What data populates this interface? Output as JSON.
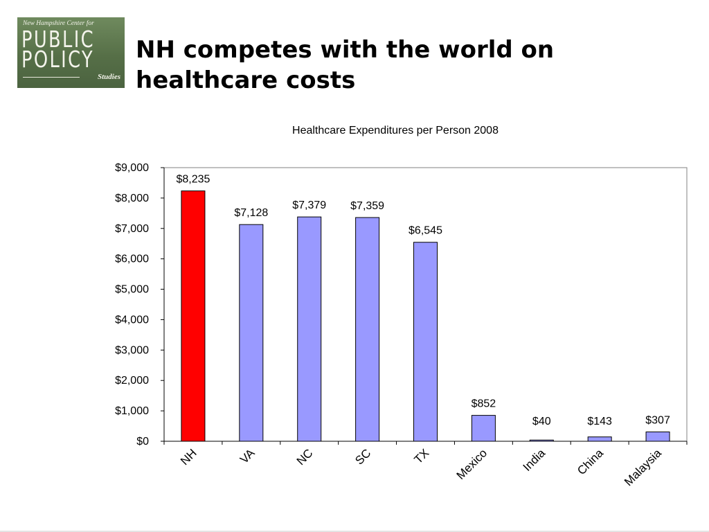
{
  "slide": {
    "title": "NH competes with the world on healthcare costs"
  },
  "logo": {
    "line1": "New Hampshire Center for",
    "line2": "PUBLIC",
    "line3": "POLICY",
    "line4": "Studies"
  },
  "chart_data": {
    "type": "bar",
    "title": "Healthcare Expenditures per Person 2008",
    "xlabel": "",
    "ylabel": "",
    "categories": [
      "NH",
      "VA",
      "NC",
      "SC",
      "TX",
      "Mexico",
      "India",
      "China",
      "Malaysia"
    ],
    "values": [
      8235,
      7128,
      7379,
      7359,
      6545,
      852,
      40,
      143,
      307
    ],
    "data_labels": [
      "$8,235",
      "$7,128",
      "$7,379",
      "$7,359",
      "$6,545",
      "$852",
      "$40",
      "$143",
      "$307"
    ],
    "ylim": [
      0,
      9000
    ],
    "yticks": [
      0,
      1000,
      2000,
      3000,
      4000,
      5000,
      6000,
      7000,
      8000,
      9000
    ],
    "ytick_labels": [
      "$0",
      "$1,000",
      "$2,000",
      "$3,000",
      "$4,000",
      "$5,000",
      "$6,000",
      "$7,000",
      "$8,000",
      "$9,000"
    ],
    "bar_colors": [
      "#ff0000",
      "#9999ff",
      "#9999ff",
      "#9999ff",
      "#9999ff",
      "#9999ff",
      "#9999ff",
      "#9999ff",
      "#9999ff"
    ],
    "grid": false,
    "legend": "none"
  }
}
